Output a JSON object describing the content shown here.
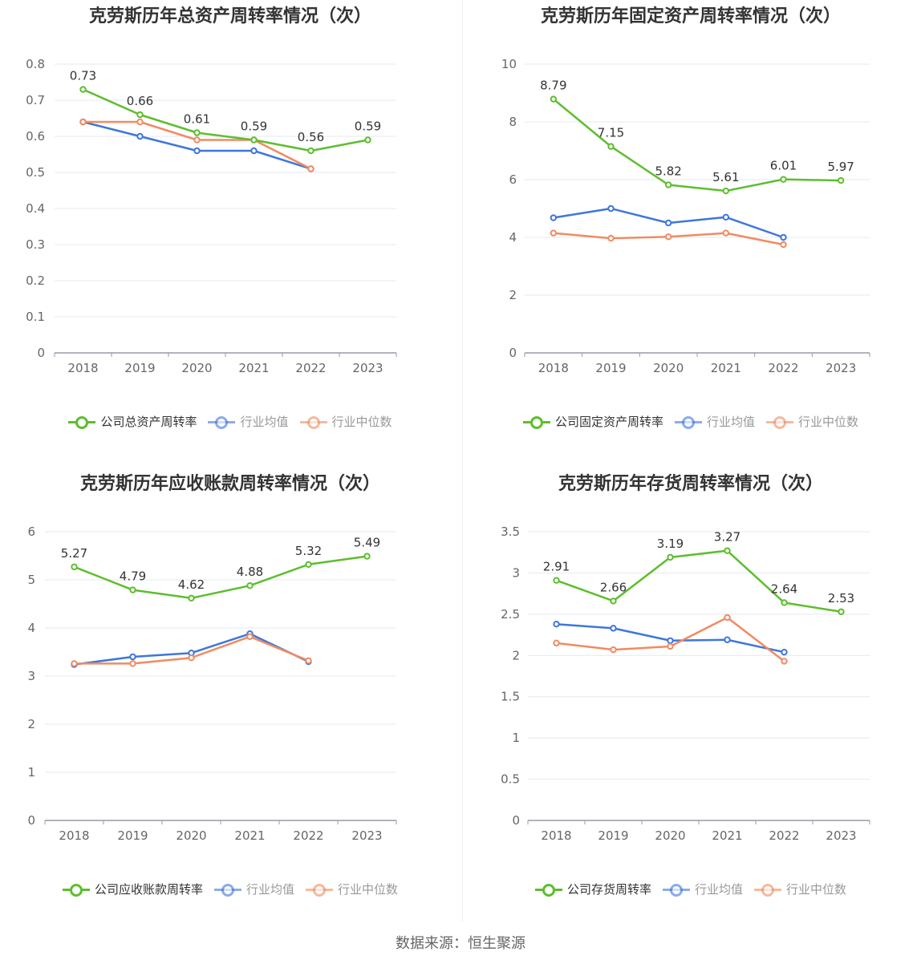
{
  "source": "数据来源：恒生聚源",
  "colors": {
    "company": "#5dbe2e",
    "avg": "#3f76dc",
    "median": "#f08b62"
  },
  "charts": [
    {
      "title": "克劳斯历年总资产周转率情况（次）",
      "legend": [
        "公司总资产周转率",
        "行业均值",
        "行业中位数"
      ],
      "y_ticks": [
        "0",
        "0.1",
        "0.2",
        "0.3",
        "0.4",
        "0.5",
        "0.6",
        "0.7",
        "0.8"
      ],
      "data_labels": [
        "0.73",
        "0.66",
        "0.61",
        "0.59",
        "0.56",
        "0.59"
      ]
    },
    {
      "title": "克劳斯历年固定资产周转率情况（次）",
      "legend": [
        "公司固定资产周转率",
        "行业均值",
        "行业中位数"
      ],
      "y_ticks": [
        "0",
        "2",
        "4",
        "6",
        "8",
        "10"
      ],
      "data_labels": [
        "8.79",
        "7.15",
        "5.82",
        "5.61",
        "6.01",
        "5.97"
      ]
    },
    {
      "title": "克劳斯历年应收账款周转率情况（次）",
      "legend": [
        "公司应收账款周转率",
        "行业均值",
        "行业中位数"
      ],
      "y_ticks": [
        "0",
        "1",
        "2",
        "3",
        "4",
        "5",
        "6"
      ],
      "data_labels": [
        "5.27",
        "4.79",
        "4.62",
        "4.88",
        "5.32",
        "5.49"
      ]
    },
    {
      "title": "克劳斯历年存货周转率情况（次）",
      "legend": [
        "公司存货周转率",
        "行业均值",
        "行业中位数"
      ],
      "y_ticks": [
        "0",
        "0.5",
        "1",
        "1.5",
        "2",
        "2.5",
        "3",
        "3.5"
      ],
      "data_labels": [
        "2.91",
        "2.66",
        "3.19",
        "3.27",
        "2.64",
        "2.53"
      ]
    }
  ],
  "chart_data": [
    {
      "type": "line",
      "title": "克劳斯历年总资产周转率情况（次）",
      "x": [
        "2018",
        "2019",
        "2020",
        "2021",
        "2022",
        "2023"
      ],
      "ylim": [
        0,
        0.8
      ],
      "grid": true,
      "legend_position": "bottom",
      "series": [
        {
          "name": "公司总资产周转率",
          "values": [
            0.73,
            0.66,
            0.61,
            0.59,
            0.56,
            0.59
          ]
        },
        {
          "name": "行业均值",
          "values": [
            0.64,
            0.6,
            0.56,
            0.56,
            0.51,
            null
          ]
        },
        {
          "name": "行业中位数",
          "values": [
            0.64,
            0.64,
            0.59,
            0.59,
            0.51,
            null
          ]
        }
      ]
    },
    {
      "type": "line",
      "title": "克劳斯历年固定资产周转率情况（次）",
      "x": [
        "2018",
        "2019",
        "2020",
        "2021",
        "2022",
        "2023"
      ],
      "ylim": [
        0,
        10
      ],
      "grid": true,
      "legend_position": "bottom",
      "series": [
        {
          "name": "公司固定资产周转率",
          "values": [
            8.79,
            7.15,
            5.82,
            5.61,
            6.01,
            5.97
          ]
        },
        {
          "name": "行业均值",
          "values": [
            4.68,
            5.0,
            4.5,
            4.7,
            4.0,
            null
          ]
        },
        {
          "name": "行业中位数",
          "values": [
            4.15,
            3.97,
            4.02,
            4.15,
            3.75,
            null
          ]
        }
      ]
    },
    {
      "type": "line",
      "title": "克劳斯历年应收账款周转率情况（次）",
      "x": [
        "2018",
        "2019",
        "2020",
        "2021",
        "2022",
        "2023"
      ],
      "ylim": [
        0,
        6
      ],
      "grid": true,
      "legend_position": "bottom",
      "series": [
        {
          "name": "公司应收账款周转率",
          "values": [
            5.27,
            4.79,
            4.62,
            4.88,
            5.32,
            5.49
          ]
        },
        {
          "name": "行业均值",
          "values": [
            3.24,
            3.4,
            3.48,
            3.88,
            3.3,
            null
          ]
        },
        {
          "name": "行业中位数",
          "values": [
            3.26,
            3.26,
            3.38,
            3.82,
            3.32,
            null
          ]
        }
      ]
    },
    {
      "type": "line",
      "title": "克劳斯历年存货周转率情况（次）",
      "x": [
        "2018",
        "2019",
        "2020",
        "2021",
        "2022",
        "2023"
      ],
      "ylim": [
        0,
        3.5
      ],
      "grid": true,
      "legend_position": "bottom",
      "series": [
        {
          "name": "公司存货周转率",
          "values": [
            2.91,
            2.66,
            3.19,
            3.27,
            2.64,
            2.53
          ]
        },
        {
          "name": "行业均值",
          "values": [
            2.38,
            2.33,
            2.18,
            2.19,
            2.04,
            null
          ]
        },
        {
          "name": "行业中位数",
          "values": [
            2.15,
            2.07,
            2.11,
            2.46,
            1.93,
            null
          ]
        }
      ]
    }
  ]
}
